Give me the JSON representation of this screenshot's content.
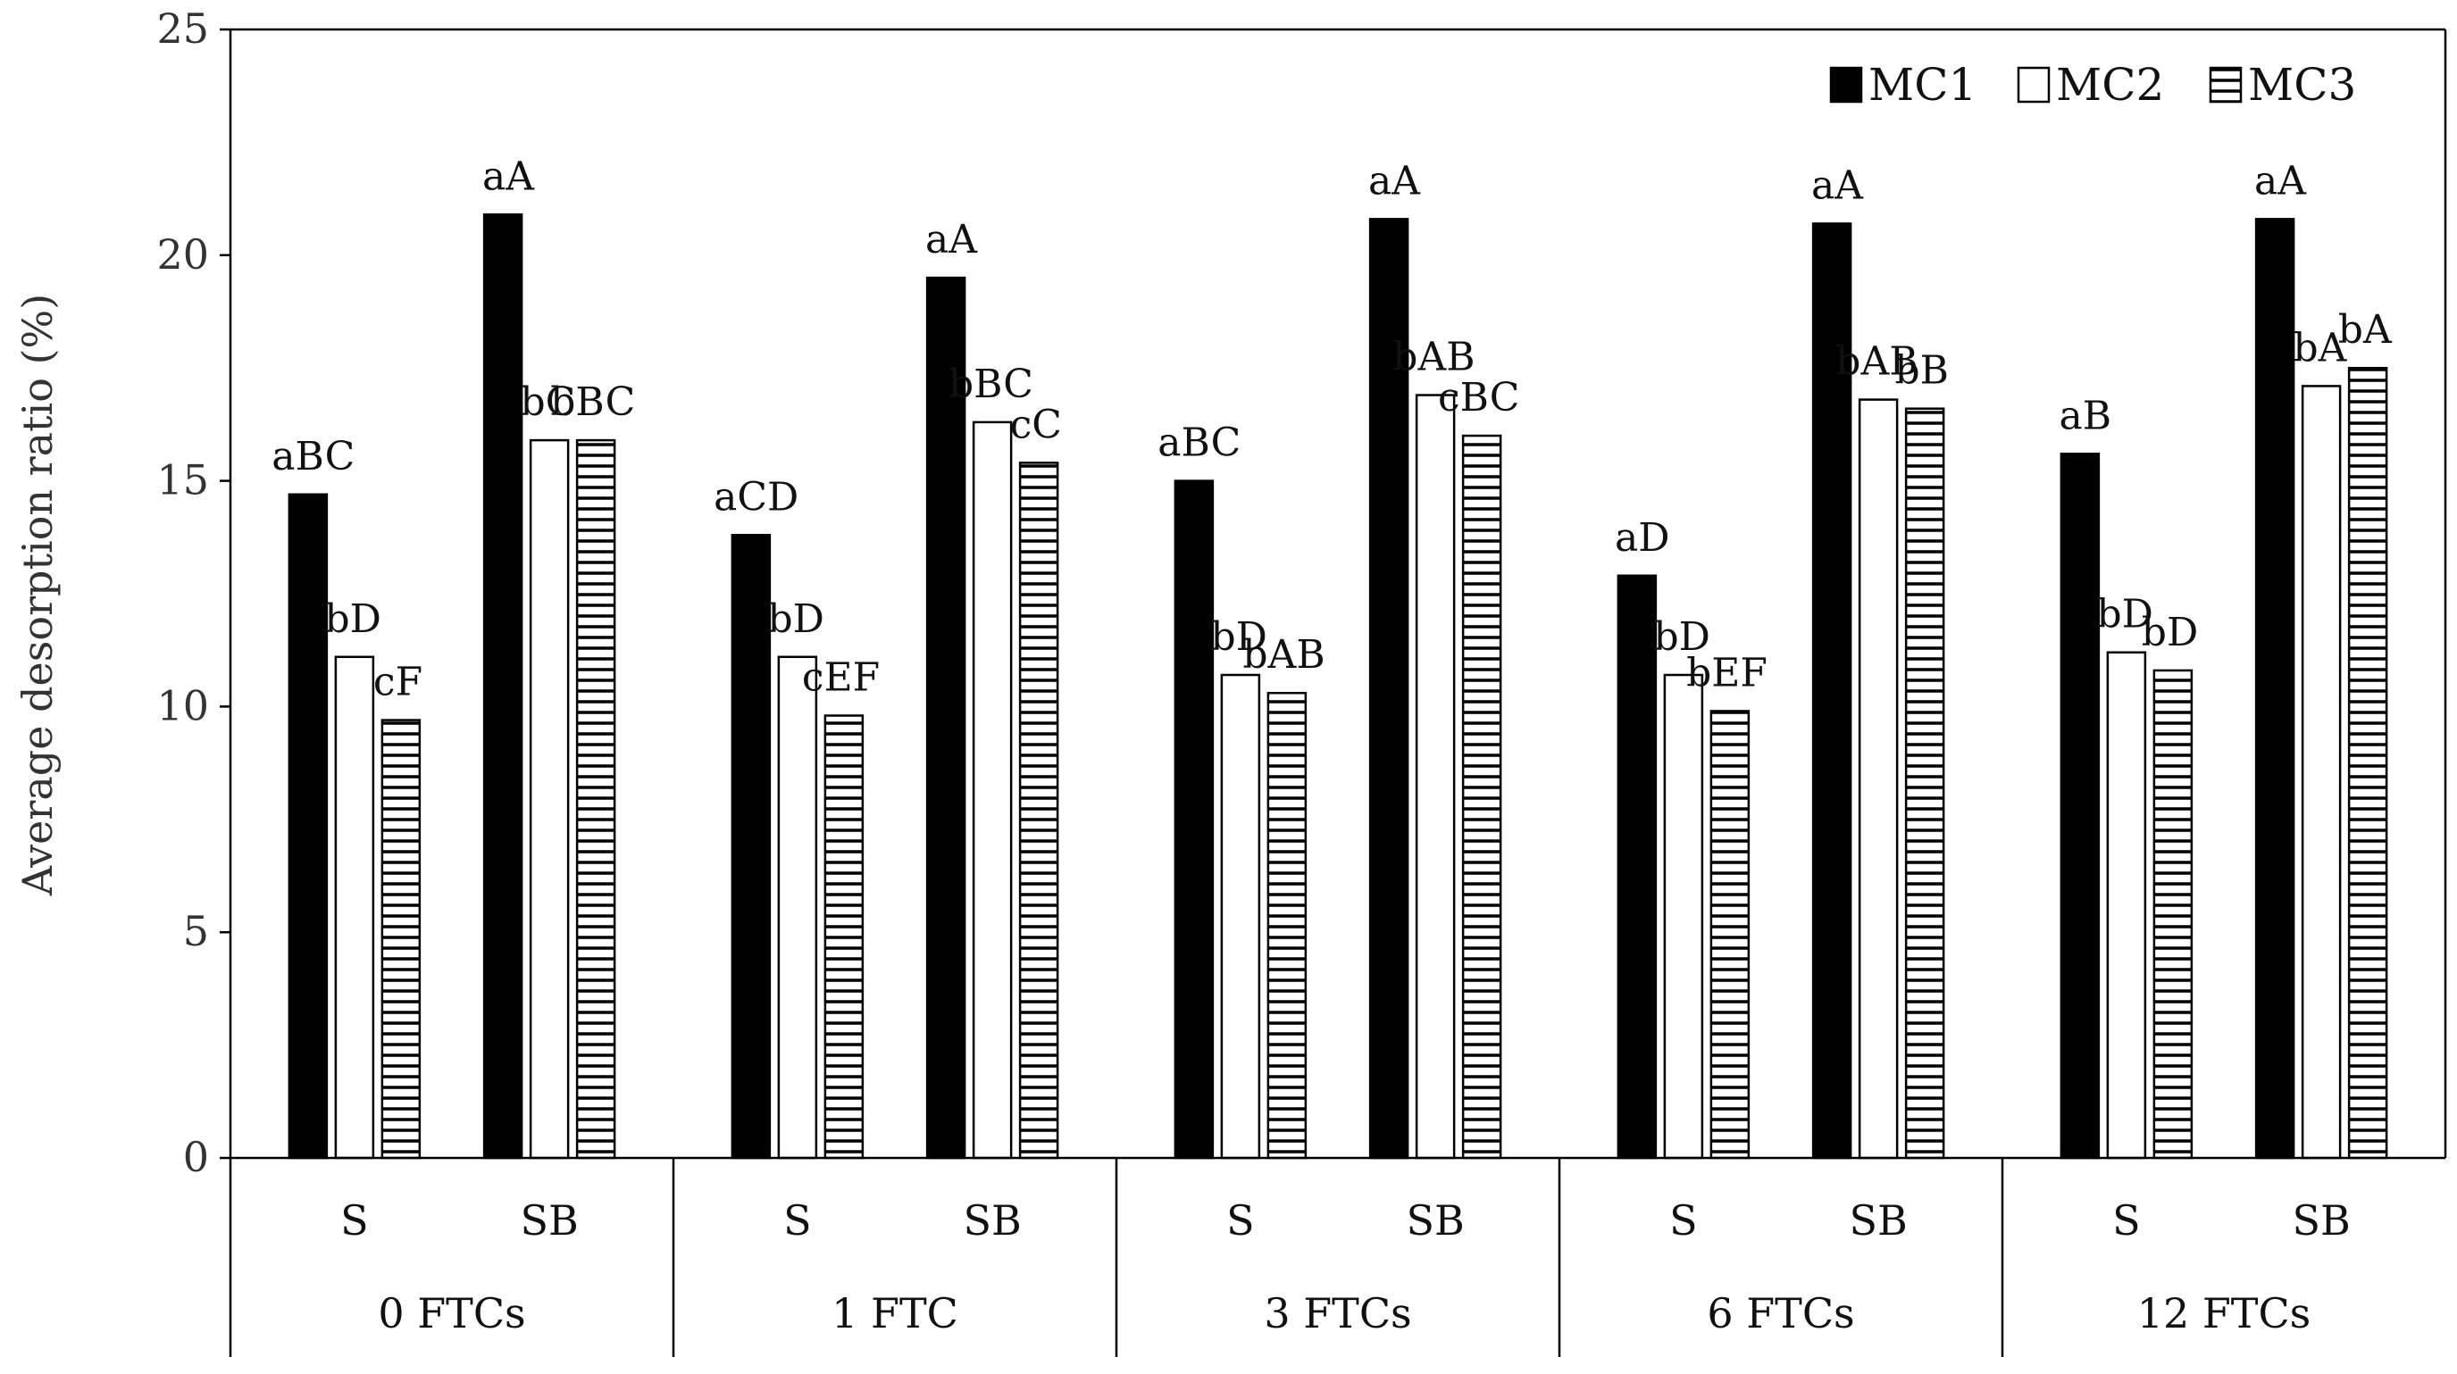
{
  "chart_data": {
    "type": "bar",
    "ylabel": "Average desorption ratio (%)",
    "ylim": [
      0,
      25
    ],
    "yticks": [
      0,
      5,
      10,
      15,
      20,
      25
    ],
    "grid": false,
    "legend_position": "top-right",
    "groups": [
      {
        "label": "0 FTCs",
        "subcategories": [
          "S",
          "SB"
        ]
      },
      {
        "label": "1 FTC",
        "subcategories": [
          "S",
          "SB"
        ]
      },
      {
        "label": "3 FTCs",
        "subcategories": [
          "S",
          "SB"
        ]
      },
      {
        "label": "6 FTCs",
        "subcategories": [
          "S",
          "SB"
        ]
      },
      {
        "label": "12 FTCs",
        "subcategories": [
          "S",
          "SB"
        ]
      }
    ],
    "series": [
      {
        "name": "MC1",
        "fill": "solid-black",
        "values": [
          14.7,
          20.9,
          13.8,
          19.5,
          15.0,
          20.8,
          12.9,
          20.7,
          15.6,
          20.8
        ],
        "labels": [
          "aBC",
          "aA",
          "aCD",
          "aA",
          "aBC",
          "aA",
          "aD",
          "aA",
          "aB",
          "aA"
        ]
      },
      {
        "name": "MC2",
        "fill": "white",
        "values": [
          11.1,
          15.9,
          11.1,
          16.3,
          10.7,
          16.9,
          10.7,
          16.8,
          11.2,
          17.1
        ],
        "labels": [
          "bD",
          "bC",
          "bD",
          "bBC",
          "bD",
          "bAB",
          "bD",
          "bAB",
          "bD",
          "bA"
        ]
      },
      {
        "name": "MC3",
        "fill": "horizontal-hatch",
        "values": [
          9.7,
          15.9,
          9.8,
          15.4,
          10.3,
          16.0,
          9.9,
          16.6,
          10.8,
          17.5
        ],
        "labels": [
          "cF",
          "bBC",
          "cEF",
          "cC",
          "bAB",
          "cBC",
          "bEF",
          "bB",
          "bD",
          "bA"
        ]
      }
    ]
  }
}
